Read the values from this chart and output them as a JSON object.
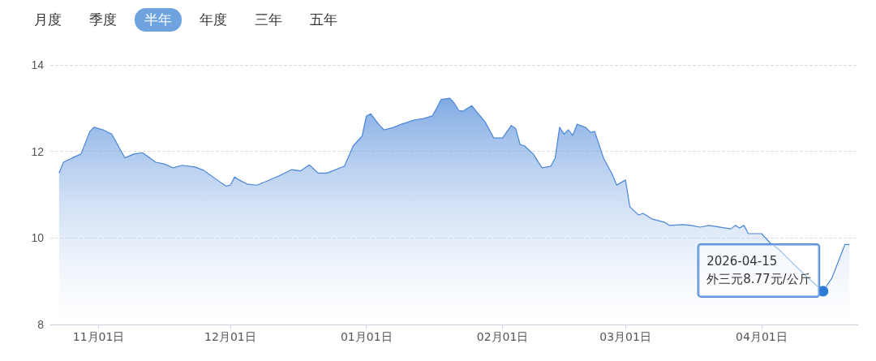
{
  "chart_data": {
    "type": "area",
    "xlim": [
      "2025-10-21",
      "2026-04-23"
    ],
    "ylim": [
      8,
      14
    ],
    "yticks": [
      8,
      10,
      12,
      14
    ],
    "xticks": [
      {
        "value": "2025-11-01",
        "label": "11月01日"
      },
      {
        "value": "2025-12-01",
        "label": "12月01日"
      },
      {
        "value": "2026-01-01",
        "label": "01月01日"
      },
      {
        "value": "2026-02-01",
        "label": "02月01日"
      },
      {
        "value": "2026-03-01",
        "label": "03月01日"
      },
      {
        "value": "2026-04-01",
        "label": "04月01日"
      }
    ],
    "grid": "y",
    "marker": "none",
    "line_style": "solid",
    "annotations": [
      "月度",
      "季度",
      "半年",
      "年度",
      "三年",
      "五年",
      {
        "text": "2026-04-15\n外三元8.77元/公斤",
        "x": "2026-04-15",
        "y": 8.77
      }
    ],
    "series": [
      {
        "color": "#4a86d8",
        "x": [
          "2025-10-23",
          "2025-10-24",
          "2025-10-26",
          "2025-10-28",
          "2025-10-30",
          "2025-10-31",
          "2025-11-02",
          "2025-11-04",
          "2025-11-06",
          "2025-11-07",
          "2025-11-09",
          "2025-11-11",
          "2025-11-12",
          "2025-11-14",
          "2025-11-16",
          "2025-11-18",
          "2025-11-20",
          "2025-11-23",
          "2025-11-25",
          "2025-11-28",
          "2025-11-30",
          "2025-12-01",
          "2025-12-02",
          "2025-12-03",
          "2025-12-05",
          "2025-12-07",
          "2025-12-09",
          "2025-12-12",
          "2025-12-15",
          "2025-12-17",
          "2025-12-19",
          "2025-12-21",
          "2025-12-23",
          "2025-12-27",
          "2025-12-29",
          "2025-12-31",
          "2026-01-01",
          "2026-01-02",
          "2026-01-04",
          "2026-01-05",
          "2026-01-07",
          "2026-01-09",
          "2026-01-12",
          "2026-01-14",
          "2026-01-16",
          "2026-01-17",
          "2026-01-18",
          "2026-01-20",
          "2026-01-21",
          "2026-01-22",
          "2026-01-23",
          "2026-01-25",
          "2026-01-26",
          "2026-01-28",
          "2026-01-30",
          "2026-02-01",
          "2026-02-03",
          "2026-02-04",
          "2026-02-05",
          "2026-02-06",
          "2026-02-08",
          "2026-02-10",
          "2026-02-12",
          "2026-02-13",
          "2026-02-14",
          "2026-02-15",
          "2026-02-16",
          "2026-02-17",
          "2026-02-18",
          "2026-02-20",
          "2026-02-21",
          "2026-02-22",
          "2026-02-24",
          "2026-02-26",
          "2026-02-27",
          "2026-03-01",
          "2026-03-02",
          "2026-03-04",
          "2026-03-05",
          "2026-03-07",
          "2026-03-10",
          "2026-03-11",
          "2026-03-14",
          "2026-03-16",
          "2026-03-18",
          "2026-03-20",
          "2026-03-25",
          "2026-03-26",
          "2026-03-27",
          "2026-03-28",
          "2026-03-29",
          "2026-04-01",
          "2026-04-03",
          "2026-04-05",
          "2026-04-11",
          "2026-04-15",
          "2026-04-17",
          "2026-04-20",
          "2026-04-21"
        ],
        "values": [
          11.5,
          11.75,
          11.85,
          11.94,
          12.46,
          12.56,
          12.5,
          12.4,
          12.03,
          11.85,
          11.94,
          11.97,
          11.9,
          11.75,
          11.71,
          11.62,
          11.68,
          11.64,
          11.56,
          11.34,
          11.2,
          11.22,
          11.41,
          11.34,
          11.24,
          11.22,
          11.3,
          11.43,
          11.58,
          11.55,
          11.69,
          11.5,
          11.5,
          11.66,
          12.13,
          12.35,
          12.82,
          12.87,
          12.6,
          12.5,
          12.55,
          12.63,
          12.73,
          12.76,
          12.82,
          13.0,
          13.2,
          13.23,
          13.12,
          12.95,
          12.93,
          13.06,
          12.93,
          12.69,
          12.31,
          12.31,
          12.6,
          12.53,
          12.16,
          12.13,
          11.94,
          11.62,
          11.66,
          11.85,
          12.56,
          12.4,
          12.5,
          12.37,
          12.63,
          12.55,
          12.44,
          12.46,
          11.85,
          11.47,
          11.22,
          11.34,
          10.72,
          10.53,
          10.57,
          10.44,
          10.36,
          10.29,
          10.31,
          10.29,
          10.25,
          10.29,
          10.21,
          10.29,
          10.23,
          10.29,
          10.1,
          10.1,
          9.88,
          9.73,
          9.13,
          8.77,
          9.07,
          9.85,
          9.85
        ]
      }
    ]
  }
}
